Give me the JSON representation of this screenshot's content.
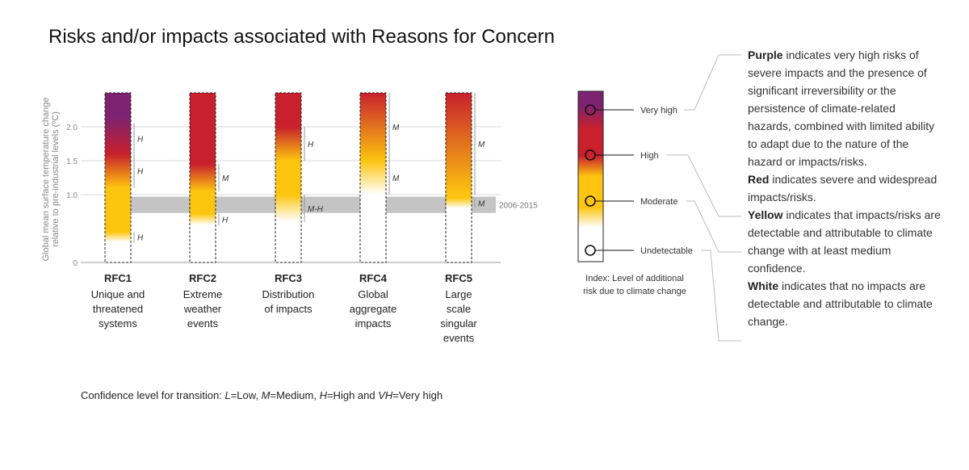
{
  "title": "Risks and/or impacts associated with Reasons for Concern",
  "chart_data": {
    "type": "bar",
    "ylabel_line1": "Global mean surface temperature change",
    "ylabel_line2": "relative to pre-industrial levels (ºC)",
    "yticks": [
      {
        "value": 0,
        "label": "0"
      },
      {
        "value": 1.0,
        "label": "1.0"
      },
      {
        "value": 1.5,
        "label": "1.5"
      },
      {
        "value": 2.0,
        "label": "2.0"
      }
    ],
    "ylim": [
      0,
      2.5
    ],
    "grid": true,
    "reference_band": {
      "label": "2006-2015",
      "range": [
        0.73,
        0.97
      ]
    },
    "risk_colors": {
      "white": "#ffffff",
      "yellow": "#fdc50f",
      "red": "#c8202d",
      "purple": "#7d2372"
    },
    "categories": [
      {
        "code": "RFC1",
        "name_lines": [
          "Unique and",
          "threatened",
          "systems"
        ],
        "transitions": [
          {
            "from": "white",
            "to": "yellow",
            "start": 0.3,
            "end": 0.45
          },
          {
            "from": "yellow",
            "to": "red",
            "start": 1.1,
            "end": 1.6
          },
          {
            "from": "red",
            "to": "purple",
            "start": 1.6,
            "end": 2.15
          }
        ],
        "confidence": [
          {
            "label": "H",
            "start": 0.3,
            "end": 0.45
          },
          {
            "label": "H",
            "start": 1.1,
            "end": 1.6
          },
          {
            "label": "H",
            "start": 1.6,
            "end": 2.05
          }
        ]
      },
      {
        "code": "RFC2",
        "name_lines": [
          "Extreme",
          "weather",
          "events"
        ],
        "transitions": [
          {
            "from": "white",
            "to": "yellow",
            "start": 0.55,
            "end": 0.72
          },
          {
            "from": "yellow",
            "to": "red",
            "start": 1.05,
            "end": 1.45
          }
        ],
        "confidence": [
          {
            "label": "H",
            "start": 0.55,
            "end": 0.72
          },
          {
            "label": "M",
            "start": 1.05,
            "end": 1.45
          }
        ]
      },
      {
        "code": "RFC3",
        "name_lines": [
          "Distribution",
          "of impacts"
        ],
        "transitions": [
          {
            "from": "white",
            "to": "yellow",
            "start": 0.6,
            "end": 1.0
          },
          {
            "from": "yellow",
            "to": "red",
            "start": 1.5,
            "end": 2.0
          }
        ],
        "confidence": [
          {
            "label": "M-H",
            "start": 0.6,
            "end": 1.0
          },
          {
            "label": "H",
            "start": 1.5,
            "end": 2.0
          }
        ]
      },
      {
        "code": "RFC4",
        "name_lines": [
          "Global",
          "aggregate",
          "impacts"
        ],
        "transitions": [
          {
            "from": "white",
            "to": "yellow",
            "start": 1.0,
            "end": 1.5
          },
          {
            "from": "yellow",
            "to": "red",
            "start": 1.5,
            "end": 2.5
          }
        ],
        "confidence": [
          {
            "label": "M",
            "start": 1.0,
            "end": 1.5
          },
          {
            "label": "M",
            "start": 1.5,
            "end": 2.5
          }
        ]
      },
      {
        "code": "RFC5",
        "name_lines": [
          "Large",
          "scale",
          "singular",
          "events"
        ],
        "transitions": [
          {
            "from": "white",
            "to": "yellow",
            "start": 0.8,
            "end": 0.95
          },
          {
            "from": "yellow",
            "to": "red",
            "start": 1.0,
            "end": 2.5
          }
        ],
        "confidence": [
          {
            "label": "M",
            "start": 0.8,
            "end": 0.95
          },
          {
            "label": "M",
            "start": 1.0,
            "end": 2.5
          }
        ]
      }
    ],
    "index": {
      "levels": [
        {
          "label": "Very high",
          "color": "purple"
        },
        {
          "label": "High",
          "color": "red"
        },
        {
          "label": "Moderate",
          "color": "yellow"
        },
        {
          "label": "Undetectable",
          "color": "white"
        }
      ],
      "caption_lines": [
        "Index: Level of additional",
        "risk due to climate change"
      ]
    }
  },
  "footnote": {
    "prefix": "Confidence level  for transition: ",
    "items": [
      {
        "abbr": "L",
        "text": "=Low, "
      },
      {
        "abbr": "M",
        "text": "=Medium, "
      },
      {
        "abbr": "H",
        "text": "=High and "
      },
      {
        "abbr": "VH",
        "text": "=Very high"
      }
    ]
  },
  "explanations": [
    {
      "term": "Purple",
      "text": " indicates very high risks of severe impacts and the presence of significant irreversibility or the persistence of climate-related hazards, combined with limited ability to adapt due to the nature of the hazard or impacts/risks."
    },
    {
      "term": "Red",
      "text": " indicates severe and widespread impacts/risks."
    },
    {
      "term": "Yellow",
      "text": " indicates that impacts/risks are detectable and attributable to climate change with at least medium confidence."
    },
    {
      "term": "White",
      "text": " indicates that no impacts are detectable and attributable to climate change."
    }
  ]
}
